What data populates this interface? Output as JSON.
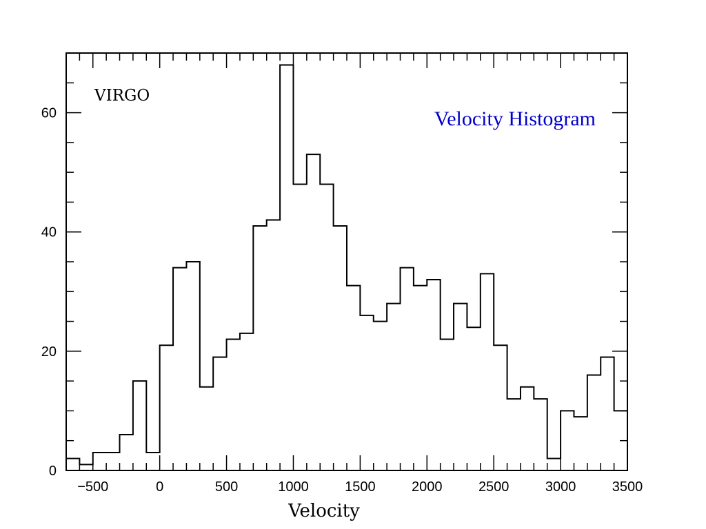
{
  "colors": {
    "title": "#0000cc",
    "line": "#000000",
    "background": "#ffffff"
  },
  "chart_data": {
    "type": "bar",
    "title": "Velocity Histogram",
    "annotation": "VIRGO",
    "xlabel": "Velocity",
    "ylabel": "",
    "xlim": [
      -700,
      3500
    ],
    "ylim": [
      0,
      70
    ],
    "bin_width": 100,
    "x_ticks": [
      -500,
      0,
      500,
      1000,
      1500,
      2000,
      2500,
      3000,
      3500
    ],
    "y_ticks": [
      0,
      20,
      40,
      60
    ],
    "x_tick_labels": [
      "−500",
      "0",
      "500",
      "1000",
      "1500",
      "2000",
      "2500",
      "3000",
      "3500"
    ],
    "y_tick_labels": [
      "0",
      "20",
      "40",
      "60"
    ],
    "grid": false,
    "bin_edges": [
      -700,
      -600,
      -500,
      -400,
      -300,
      -200,
      -100,
      0,
      100,
      200,
      300,
      400,
      500,
      600,
      700,
      800,
      900,
      1000,
      1100,
      1200,
      1300,
      1400,
      1500,
      1600,
      1700,
      1800,
      1900,
      2000,
      2100,
      2200,
      2300,
      2400,
      2500,
      2600,
      2700,
      2800,
      2900,
      3000,
      3100,
      3200,
      3300,
      3400,
      3500
    ],
    "counts": [
      2,
      1,
      3,
      3,
      6,
      15,
      3,
      21,
      34,
      35,
      14,
      19,
      22,
      23,
      41,
      42,
      68,
      48,
      53,
      48,
      41,
      31,
      26,
      25,
      28,
      34,
      31,
      32,
      22,
      28,
      24,
      33,
      21,
      12,
      14,
      12,
      2,
      10,
      9,
      16,
      19,
      10
    ]
  }
}
